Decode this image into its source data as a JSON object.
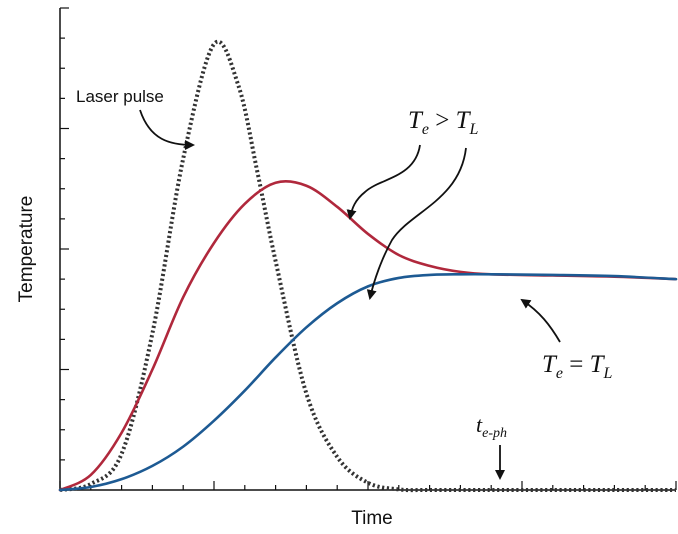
{
  "chart_data": {
    "type": "line",
    "title": "",
    "xlabel": "Time",
    "ylabel": "Temperature",
    "xlim": [
      0,
      10
    ],
    "ylim": [
      0,
      8
    ],
    "grid": false,
    "legend": "none",
    "series": [
      {
        "key": "laser",
        "color": "#333333",
        "style": "dotted",
        "x": [
          0,
          0.5,
          1.0,
          1.5,
          2.0,
          2.5,
          2.9,
          3.2,
          3.5,
          4.0,
          4.5,
          5.0,
          5.5,
          6.0,
          7.0,
          8.0,
          9.0,
          10.0
        ],
        "y": [
          0,
          0.1,
          0.6,
          2.6,
          5.5,
          7.4,
          6.7,
          5.3,
          3.8,
          1.6,
          0.55,
          0.12,
          0.01,
          0,
          0,
          0,
          0,
          0
        ]
      },
      {
        "key": "electron",
        "color": "#b0283c",
        "style": "solid",
        "x": [
          0,
          0.5,
          1.0,
          1.5,
          2.0,
          2.5,
          3.0,
          3.5,
          4.0,
          4.5,
          5.0,
          5.5,
          6.0,
          6.5,
          7.0,
          8.0,
          9.0,
          10.0
        ],
        "y": [
          0,
          0.25,
          0.95,
          2.0,
          3.2,
          4.1,
          4.75,
          5.1,
          5.05,
          4.7,
          4.25,
          3.9,
          3.72,
          3.62,
          3.58,
          3.56,
          3.54,
          3.5
        ],
        "name": "T_e"
      },
      {
        "key": "lattice",
        "color": "#1d5a93",
        "style": "solid",
        "x": [
          0,
          0.5,
          1.0,
          1.5,
          2.0,
          2.5,
          3.0,
          3.5,
          4.0,
          4.5,
          5.0,
          5.5,
          6.0,
          6.5,
          7.0,
          8.0,
          9.0,
          10.0
        ],
        "y": [
          0,
          0.05,
          0.18,
          0.4,
          0.72,
          1.15,
          1.65,
          2.2,
          2.7,
          3.1,
          3.38,
          3.52,
          3.57,
          3.58,
          3.58,
          3.57,
          3.55,
          3.5
        ],
        "name": "T_L"
      }
    ],
    "annotations": [
      {
        "key": "laser_label",
        "text": "Laser pulse"
      },
      {
        "key": "te_gt_tl",
        "main": "T",
        "sub1": "e",
        "op": " > ",
        "main2": "T",
        "sub2": "L"
      },
      {
        "key": "te_eq_tl",
        "main": "T",
        "sub1": "e",
        "op": " = ",
        "main2": "T",
        "sub2": "L"
      },
      {
        "key": "teph",
        "main": "t",
        "sub1": "e-ph"
      }
    ]
  }
}
